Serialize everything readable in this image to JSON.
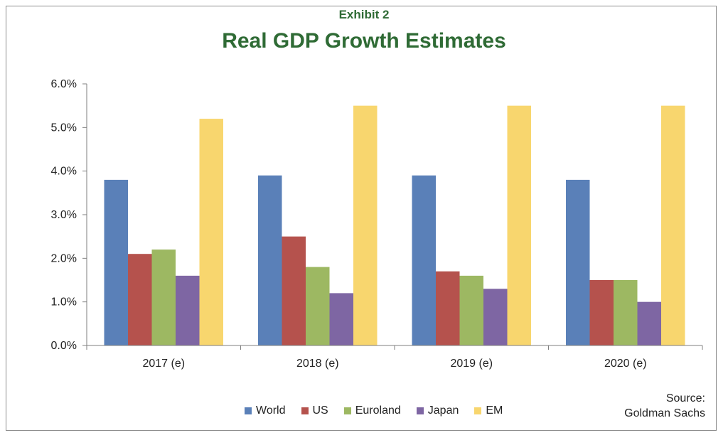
{
  "header": {
    "exhibit": "Exhibit 2",
    "title": "Real GDP Growth Estimates"
  },
  "source": {
    "line1": "Source:",
    "line2": "Goldman Sachs"
  },
  "chart_data": {
    "type": "bar",
    "categories": [
      "2017 (e)",
      "2018 (e)",
      "2019 (e)",
      "2020 (e)"
    ],
    "series": [
      {
        "name": "World",
        "color": "#5a80b8",
        "values": [
          3.8,
          3.9,
          3.9,
          3.8
        ]
      },
      {
        "name": "US",
        "color": "#b5524d",
        "values": [
          2.1,
          2.5,
          1.7,
          1.5
        ]
      },
      {
        "name": "Euroland",
        "color": "#9db862",
        "values": [
          2.2,
          1.8,
          1.6,
          1.5
        ]
      },
      {
        "name": "Japan",
        "color": "#7e66a3",
        "values": [
          1.6,
          1.2,
          1.3,
          1.0
        ]
      },
      {
        "name": "EM",
        "color": "#f8d66e",
        "values": [
          5.2,
          5.5,
          5.5,
          5.5
        ]
      }
    ],
    "yticks": [
      "0.0%",
      "1.0%",
      "2.0%",
      "3.0%",
      "4.0%",
      "5.0%",
      "6.0%"
    ],
    "ylim": [
      0,
      6
    ],
    "grid": false,
    "legend_position": "bottom"
  }
}
